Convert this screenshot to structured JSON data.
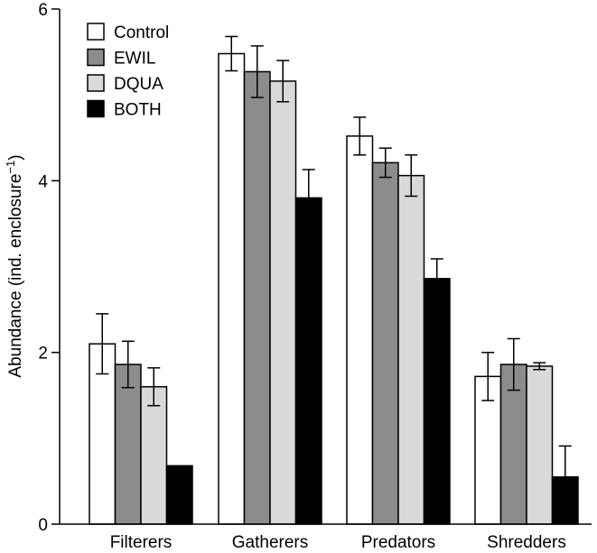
{
  "chart_data": {
    "type": "bar",
    "title": "",
    "xlabel": "",
    "ylabel": "Abundance (ind. enclosure",
    "ylabel_superscript": "−1",
    "ylabel_suffix": ")",
    "ylim": [
      0,
      6
    ],
    "yticks": [
      0,
      2,
      4,
      6
    ],
    "categories": [
      "Filterers",
      "Gatherers",
      "Predators",
      "Shredders"
    ],
    "series": [
      {
        "name": "Control",
        "color": "#ffffff",
        "values": [
          2.1,
          5.48,
          4.52,
          1.72
        ],
        "errors": [
          0.35,
          0.2,
          0.22,
          0.28
        ]
      },
      {
        "name": "EWIL",
        "color": "#8c8c8c",
        "values": [
          1.86,
          5.27,
          4.21,
          1.86
        ],
        "errors": [
          0.27,
          0.3,
          0.17,
          0.3
        ]
      },
      {
        "name": "DQUA",
        "color": "#d9d9d9",
        "values": [
          1.6,
          5.16,
          4.06,
          1.84
        ],
        "errors": [
          0.22,
          0.24,
          0.24,
          0.04
        ]
      },
      {
        "name": "BOTH",
        "color": "#000000",
        "values": [
          0.68,
          3.8,
          2.86,
          0.55
        ],
        "errors": [
          0,
          0.33,
          0.23,
          0.36
        ]
      }
    ],
    "grid": false,
    "legend_position": "top-left"
  }
}
